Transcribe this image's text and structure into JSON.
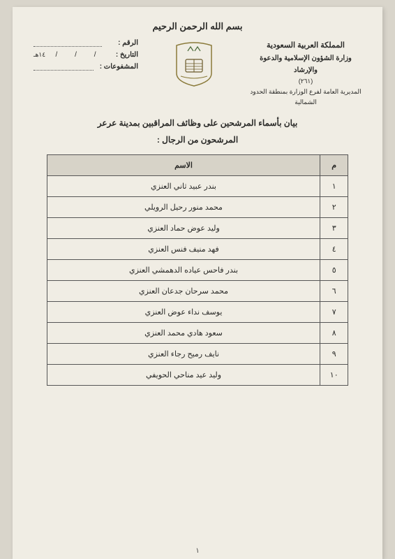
{
  "bismillah": "بسم الله الرحمن الرحيم",
  "header": {
    "country": "المملكة العربية السعودية",
    "ministry": "وزارة الشؤون الإسلامية والدعوة والإرشاد",
    "code": "(٢٦١)",
    "branch": "المديرية العامة لفرع الوزارة بمنطقة الحدود الشمالية",
    "ref_label": "الرقم :",
    "date_label": "التاريخ :",
    "date_slash": "/",
    "date_suffix": "١٤هـ",
    "attach_label": "المشفوعات :"
  },
  "title": "بيان بأسماء المرشحين على وظائف المراقبين بمدينة عرعر",
  "subtitle": "المرشحون من الرجال :",
  "table": {
    "col_num": "م",
    "col_name": "الاسم",
    "rows": [
      {
        "n": "١",
        "name": "بندر عبيد ثاني العنزي"
      },
      {
        "n": "٢",
        "name": "محمد منور رحيل الرويلي"
      },
      {
        "n": "٣",
        "name": "وليد عوض حماد العنزي"
      },
      {
        "n": "٤",
        "name": "فهد منيف فنس العنزي"
      },
      {
        "n": "٥",
        "name": "بندر فاحس عياده الدهمشي العنزي"
      },
      {
        "n": "٦",
        "name": "محمد سرحان جدعان العنزي"
      },
      {
        "n": "٧",
        "name": "يوسف نداء عوض العنزي"
      },
      {
        "n": "٨",
        "name": "سعود هادي محمد العنزي"
      },
      {
        "n": "٩",
        "name": "نايف رميح رجاء العنزي"
      },
      {
        "n": "١٠",
        "name": "وليد عيد مناحي الحويفي"
      }
    ]
  },
  "page_number": "١",
  "colors": {
    "page_bg": "#f0ede4",
    "outer_bg": "#d9d5cb",
    "text": "#2a2a28",
    "border": "#555555",
    "th_bg": "#d7d3c8"
  }
}
